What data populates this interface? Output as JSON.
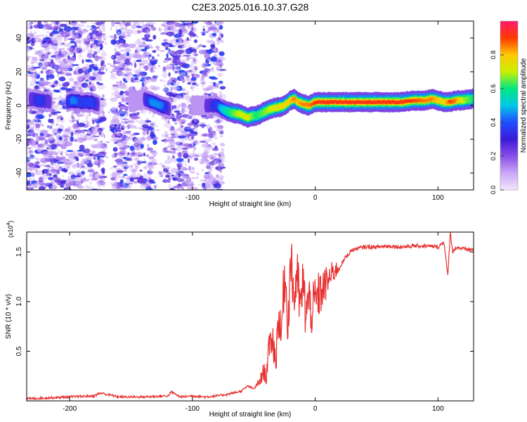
{
  "title": "C2E3.2025.016.10.37.G28",
  "chart_data": [
    {
      "type": "heatmap",
      "xlabel": "Height of straight line (km)",
      "ylabel": "Frequency (Hz)",
      "xlim": [
        -235,
        129
      ],
      "ylim": [
        -50,
        50
      ],
      "x_ticks": [
        -200,
        -100,
        0,
        100
      ],
      "y_ticks": [
        -40,
        -20,
        0,
        20,
        40
      ],
      "colorbar": {
        "label": "Normalized spectral amplitude",
        "range": [
          0.0,
          1.0
        ],
        "ticks": [
          0.0,
          0.2,
          0.4,
          0.6,
          0.8
        ],
        "tick_labels": [
          "0.0",
          "0.2",
          "0.4",
          "0.6",
          "0.8"
        ],
        "colors": [
          "#f2e6ff",
          "#c9a7f5",
          "#8a4ee8",
          "#3b1bd6",
          "#1f4dff",
          "#00c8e8",
          "#00e880",
          "#c8f000",
          "#ffc800",
          "#ff3a00",
          "#ff1a6a"
        ]
      },
      "noise_bands": [
        [
          -235,
          -172
        ],
        [
          -165,
          -130
        ],
        [
          -123,
          -97
        ],
        [
          -92,
          -75
        ]
      ],
      "ridge": {
        "x": [
          -233,
          -225,
          -215,
          -205,
          -198,
          -190,
          -182,
          -176,
          -170,
          -162,
          -150,
          -140,
          -133,
          -126,
          -118,
          -110,
          -100,
          -90,
          -80,
          -76,
          -70,
          -62,
          -55,
          -48,
          -42,
          -36,
          -30,
          -25,
          -20,
          -17,
          -14,
          -10,
          -5,
          0,
          10,
          20,
          30,
          40,
          50,
          60,
          70,
          80,
          90,
          95,
          100,
          105,
          110,
          115,
          120,
          129
        ],
        "freq": [
          4,
          3,
          2,
          1,
          3,
          2,
          2,
          0,
          0,
          1,
          2,
          4,
          2,
          0,
          -2,
          0,
          0,
          0,
          0,
          -2,
          -4,
          -5,
          -7,
          -6,
          -4,
          -2,
          -1,
          0,
          3,
          4,
          2,
          1,
          0,
          2,
          2,
          2,
          2,
          2,
          2,
          2,
          2,
          3,
          3,
          4,
          3,
          2,
          2,
          3,
          3,
          4
        ],
        "amplitude": [
          0.35,
          0.4,
          0.35,
          0.3,
          0.45,
          0.4,
          0.42,
          0.35,
          0.3,
          0.3,
          0.35,
          0.35,
          0.45,
          0.45,
          0.35,
          0.3,
          0.35,
          0.35,
          0.4,
          0.5,
          0.6,
          0.7,
          0.72,
          0.6,
          0.65,
          0.7,
          0.75,
          0.75,
          0.8,
          0.85,
          0.8,
          0.85,
          0.85,
          0.9,
          0.95,
          0.95,
          0.95,
          0.95,
          0.95,
          0.95,
          0.92,
          0.9,
          0.85,
          0.85,
          0.8,
          0.75,
          0.9,
          0.85,
          0.7,
          0.6
        ]
      }
    },
    {
      "type": "line",
      "xlabel": "Height of straight line (km)",
      "ylabel": "SNR (10 * v/v)",
      "y_multiplier": "(x10",
      "y_multiplier_exp": "4",
      "y_multiplier_close": ")",
      "xlim": [
        -235,
        129
      ],
      "ylim": [
        0,
        1.7
      ],
      "x_ticks": [
        -200,
        -100,
        0,
        100
      ],
      "y_ticks": [
        0.5,
        1.0,
        1.5
      ],
      "y_tick_labels": [
        "0.5",
        "1.0",
        "1.5"
      ],
      "line_color": "#e83030",
      "series": [
        {
          "x": [
            -235,
            -220,
            -200,
            -180,
            -175,
            -160,
            -140,
            -120,
            -117,
            -110,
            -100,
            -90,
            -80,
            -70,
            -60,
            -55,
            -50,
            -45,
            -42,
            -40,
            -38,
            -35,
            -32,
            -30,
            -28,
            -25,
            -22,
            -20,
            -17,
            -15,
            -12,
            -10,
            -8,
            -5,
            -2,
            0,
            5,
            10,
            15,
            20,
            25,
            30,
            40,
            50,
            60,
            70,
            80,
            90,
            100,
            105,
            108,
            110,
            112,
            115,
            120,
            129
          ],
          "values": [
            0.02,
            0.03,
            0.04,
            0.05,
            0.08,
            0.04,
            0.04,
            0.05,
            0.09,
            0.04,
            0.05,
            0.04,
            0.05,
            0.07,
            0.1,
            0.15,
            0.12,
            0.2,
            0.3,
            0.25,
            0.5,
            0.65,
            0.4,
            0.9,
            0.6,
            1.3,
            0.8,
            1.45,
            1.0,
            1.3,
            0.9,
            1.2,
            0.9,
            1.0,
            0.9,
            1.0,
            1.1,
            1.2,
            1.3,
            1.35,
            1.45,
            1.52,
            1.55,
            1.55,
            1.56,
            1.55,
            1.56,
            1.56,
            1.55,
            1.6,
            1.25,
            1.7,
            1.5,
            1.55,
            1.53,
            1.52
          ]
        }
      ]
    }
  ]
}
